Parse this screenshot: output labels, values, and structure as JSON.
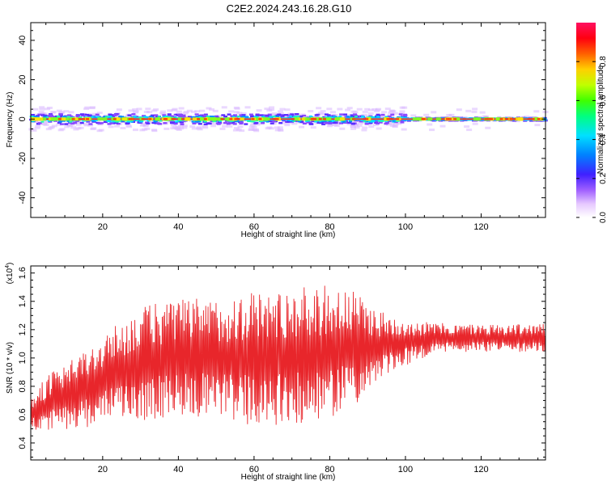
{
  "title": "C2E2.2024.243.16.28.G10",
  "colors": {
    "snr_line": "#e8262b",
    "frame": "#000000"
  },
  "chart_data": [
    {
      "type": "heatmap",
      "title": "C2E2.2024.243.16.28.G10",
      "xlabel": "Height of straight line (km)",
      "ylabel": "Frequency (Hz)",
      "xlim": [
        1,
        137
      ],
      "ylim": [
        -50,
        49
      ],
      "xticks": [
        20,
        40,
        60,
        80,
        100,
        120
      ],
      "yticks": [
        -40,
        -20,
        0,
        20,
        40
      ],
      "ytick_labels": [
        "-40",
        "-20",
        "0",
        "20",
        "40"
      ],
      "description_values": {
        "center_frequency": 0,
        "spread_hz": 6
      },
      "colorbar": {
        "label": "Normalized spectral amplitude",
        "range": [
          0,
          1
        ],
        "ticks": [
          0.0,
          0.2,
          0.4,
          0.6,
          0.8
        ],
        "tick_labels": [
          "0.0",
          "0.2",
          "0.4",
          "0.6",
          "0.8"
        ],
        "colormap": "rainbow"
      }
    },
    {
      "type": "line",
      "xlabel": "Height of straight line (km)",
      "ylabel": "SNR (10 * v/v)",
      "scale_label": "(x10",
      "scale_exponent": "4",
      "scale_close": ")",
      "xlim": [
        1,
        137
      ],
      "ylim": [
        0.28,
        1.65
      ],
      "xticks": [
        20,
        40,
        60,
        80,
        100,
        120
      ],
      "yticks": [
        0.4,
        0.6,
        0.8,
        1.0,
        1.2,
        1.4,
        1.6
      ],
      "ytick_labels": [
        "0.4",
        "0.6",
        "0.8",
        "1.0",
        "1.2",
        "1.4",
        "1.6"
      ],
      "series": [
        {
          "name": "SNR",
          "x": [
            1,
            3,
            5,
            7,
            9,
            11,
            13,
            15,
            17,
            19,
            21,
            23,
            25,
            27,
            29,
            31,
            33,
            35,
            37,
            39,
            41,
            43,
            45,
            47,
            49,
            51,
            53,
            55,
            57,
            59,
            61,
            63,
            65,
            67,
            69,
            71,
            73,
            75,
            77,
            79,
            81,
            83,
            85,
            87,
            89,
            91,
            93,
            95,
            97,
            99,
            101,
            103,
            105,
            107,
            109,
            111,
            113,
            115,
            117,
            119,
            121,
            123,
            125,
            127,
            129,
            131,
            133,
            135,
            137
          ],
          "mean": [
            0.6,
            0.64,
            0.66,
            0.7,
            0.7,
            0.72,
            0.76,
            0.78,
            0.8,
            0.84,
            0.86,
            0.9,
            0.92,
            0.94,
            0.95,
            0.96,
            0.98,
            0.98,
            0.99,
            1.0,
            1.0,
            1.0,
            1.0,
            1.0,
            1.0,
            1.0,
            1.0,
            1.0,
            1.0,
            1.0,
            1.0,
            1.0,
            1.0,
            1.01,
            1.01,
            1.02,
            1.02,
            1.02,
            1.03,
            1.04,
            1.04,
            1.05,
            1.06,
            1.06,
            1.07,
            1.08,
            1.08,
            1.09,
            1.1,
            1.11,
            1.12,
            1.12,
            1.13,
            1.13,
            1.14,
            1.14,
            1.14,
            1.14,
            1.14,
            1.14,
            1.14,
            1.14,
            1.14,
            1.14,
            1.14,
            1.14,
            1.14,
            1.14,
            1.14
          ],
          "amplitude": [
            0.12,
            0.16,
            0.2,
            0.22,
            0.22,
            0.24,
            0.26,
            0.28,
            0.28,
            0.3,
            0.3,
            0.32,
            0.34,
            0.36,
            0.38,
            0.4,
            0.42,
            0.42,
            0.42,
            0.42,
            0.42,
            0.42,
            0.42,
            0.42,
            0.42,
            0.42,
            0.44,
            0.45,
            0.46,
            0.48,
            0.48,
            0.48,
            0.48,
            0.48,
            0.48,
            0.48,
            0.48,
            0.48,
            0.48,
            0.48,
            0.46,
            0.44,
            0.42,
            0.4,
            0.36,
            0.3,
            0.26,
            0.22,
            0.2,
            0.18,
            0.16,
            0.14,
            0.13,
            0.12,
            0.11,
            0.1,
            0.1,
            0.1,
            0.1,
            0.1,
            0.1,
            0.1,
            0.1,
            0.1,
            0.1,
            0.1,
            0.1,
            0.1,
            0.1
          ]
        }
      ]
    }
  ]
}
